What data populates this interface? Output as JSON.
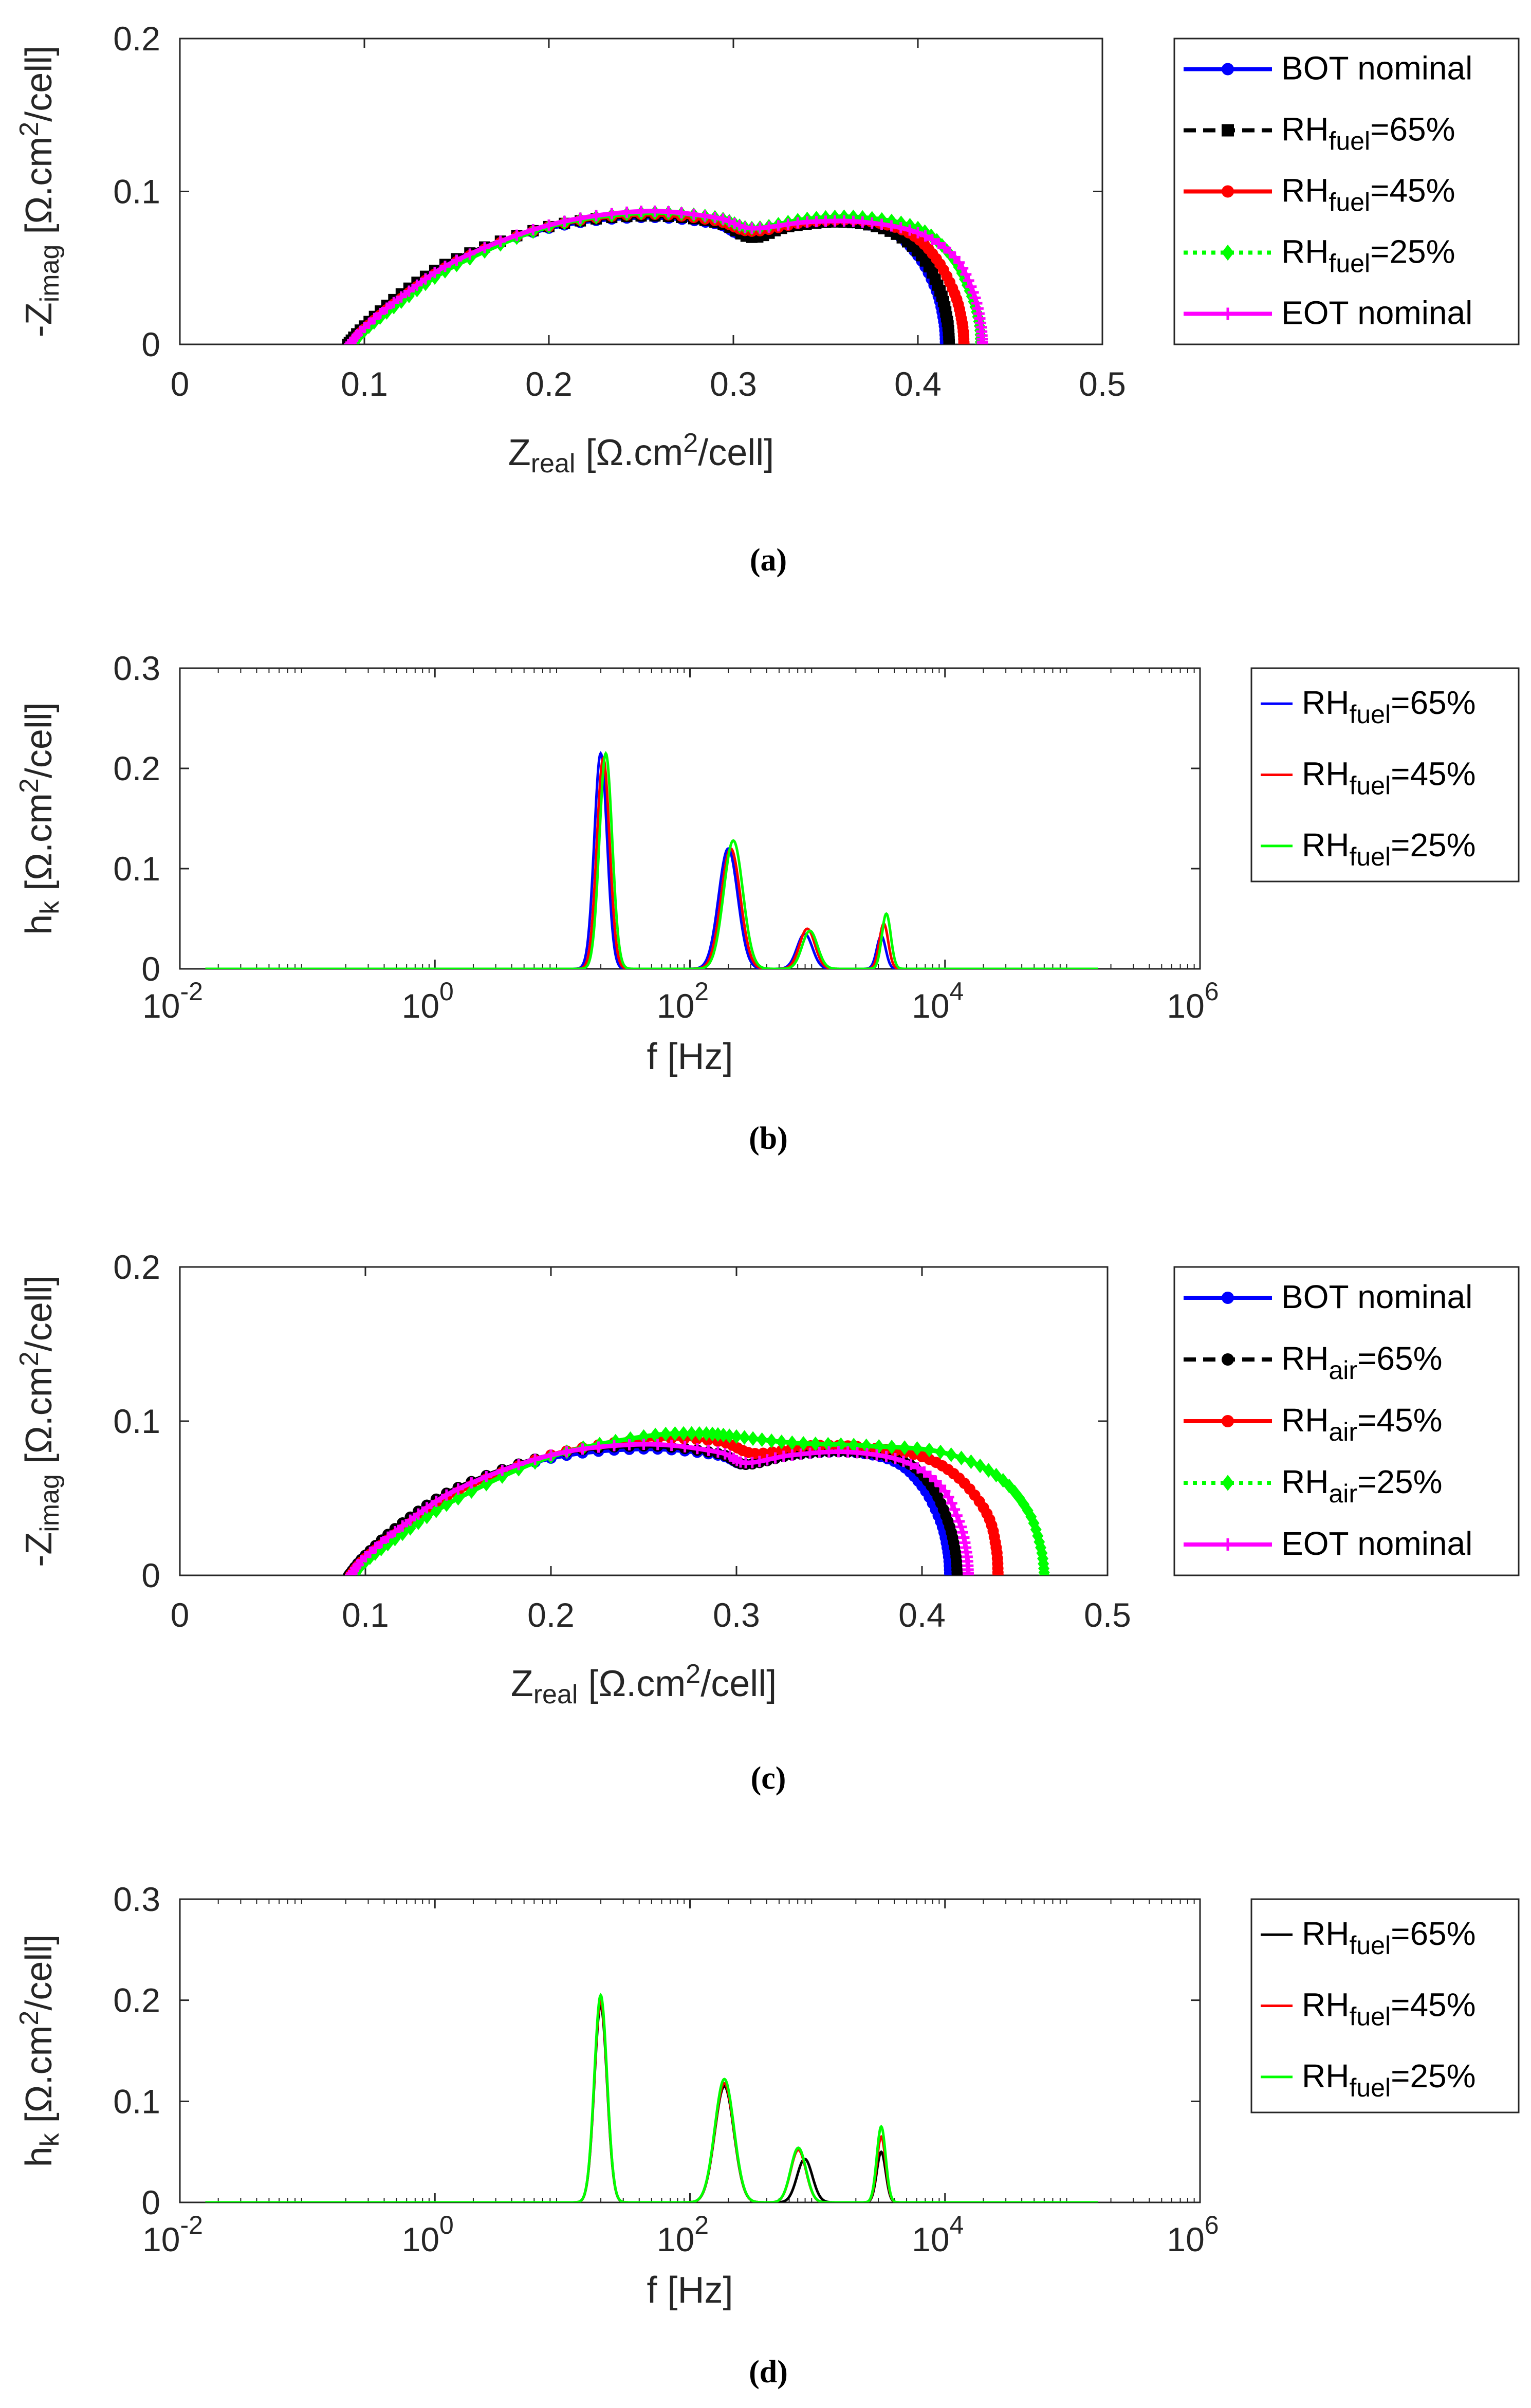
{
  "colors": {
    "blue": "#0000ff",
    "black": "#000000",
    "red": "#ff0000",
    "green": "#00ff00",
    "magenta": "#ff00ff"
  },
  "chart_data": [
    {
      "id": "a",
      "type": "line",
      "caption": "(a)",
      "xlabel": {
        "main": "Z",
        "sub": "real",
        "unit": "[Ω.cm",
        "sup": "2",
        "end": "/cell]"
      },
      "ylabel": {
        "main": "-Z",
        "sub": "imag",
        "unit": "[Ω.cm",
        "sup": "2",
        "end": "/cell]"
      },
      "xlim": [
        0,
        0.5
      ],
      "ylim": [
        0,
        0.2
      ],
      "xticks": [
        "0",
        "0.1",
        "0.2",
        "0.3",
        "0.4",
        "0.5"
      ],
      "yticks": [
        "0",
        "0.1",
        "0.2"
      ],
      "legend": [
        {
          "text": "BOT nominal",
          "color": "#0000ff",
          "dash": "solid",
          "marker": "dot"
        },
        {
          "text": "RH",
          "sub": "fuel",
          "tail": "=65%",
          "color": "#000000",
          "dash": "dashed",
          "marker": "square"
        },
        {
          "text": "RH",
          "sub": "fuel",
          "tail": "=45%",
          "color": "#ff0000",
          "dash": "solid",
          "marker": "dot"
        },
        {
          "text": "RH",
          "sub": "fuel",
          "tail": "=25%",
          "color": "#00ff00",
          "dash": "dotted",
          "marker": "diamond"
        },
        {
          "text": "EOT nominal",
          "color": "#ff00ff",
          "dash": "solid",
          "marker": "plus"
        }
      ],
      "series": [
        {
          "name": "BOT nominal",
          "color": "#0000ff",
          "marker": "dot",
          "x": [
            0.091,
            0.1,
            0.12,
            0.15,
            0.2,
            0.25,
            0.29,
            0.305,
            0.33,
            0.36,
            0.385,
            0.4,
            0.41,
            0.414,
            0.415
          ],
          "y": [
            0,
            0.012,
            0.032,
            0.055,
            0.076,
            0.083,
            0.079,
            0.072,
            0.078,
            0.08,
            0.074,
            0.058,
            0.035,
            0.015,
            0
          ]
        },
        {
          "name": "RH_fuel=65%",
          "color": "#000000",
          "marker": "square",
          "x": [
            0.091,
            0.1,
            0.12,
            0.15,
            0.2,
            0.25,
            0.29,
            0.31,
            0.33,
            0.36,
            0.385,
            0.402,
            0.412,
            0.416,
            0.417
          ],
          "y": [
            0,
            0.012,
            0.033,
            0.056,
            0.077,
            0.084,
            0.08,
            0.07,
            0.077,
            0.08,
            0.074,
            0.058,
            0.035,
            0.015,
            0
          ]
        },
        {
          "name": "RH_fuel=45%",
          "color": "#ff0000",
          "marker": "dot",
          "x": [
            0.093,
            0.1,
            0.12,
            0.15,
            0.2,
            0.25,
            0.29,
            0.31,
            0.34,
            0.37,
            0.395,
            0.41,
            0.42,
            0.424,
            0.425
          ],
          "y": [
            0,
            0.01,
            0.03,
            0.054,
            0.077,
            0.085,
            0.081,
            0.074,
            0.08,
            0.081,
            0.073,
            0.056,
            0.033,
            0.014,
            0
          ]
        },
        {
          "name": "RH_fuel=25%",
          "color": "#00ff00",
          "marker": "diamond",
          "x": [
            0.094,
            0.1,
            0.12,
            0.15,
            0.2,
            0.25,
            0.29,
            0.31,
            0.34,
            0.37,
            0.4,
            0.418,
            0.428,
            0.433,
            0.434
          ],
          "y": [
            0,
            0.009,
            0.028,
            0.052,
            0.077,
            0.086,
            0.083,
            0.076,
            0.082,
            0.083,
            0.076,
            0.058,
            0.035,
            0.015,
            0
          ]
        },
        {
          "name": "EOT nominal",
          "color": "#ff00ff",
          "marker": "plus",
          "x": [
            0.092,
            0.1,
            0.12,
            0.15,
            0.2,
            0.25,
            0.29,
            0.31,
            0.34,
            0.37,
            0.4,
            0.42,
            0.43,
            0.434,
            0.435
          ],
          "y": [
            0,
            0.011,
            0.031,
            0.055,
            0.078,
            0.087,
            0.083,
            0.076,
            0.08,
            0.08,
            0.073,
            0.057,
            0.034,
            0.014,
            0
          ]
        }
      ]
    },
    {
      "id": "b",
      "type": "line",
      "caption": "(b)",
      "xscale": "log",
      "xlabel": {
        "main": "f [Hz]"
      },
      "ylabel": {
        "main": "h",
        "sub": "k",
        "unit": "[Ω.cm",
        "sup": "2",
        "end": "/cell]"
      },
      "xlim": [
        -2,
        6
      ],
      "ylim": [
        0,
        0.3
      ],
      "xticks": [
        {
          "b": "10",
          "e": "-2"
        },
        {
          "b": "10",
          "e": "0"
        },
        {
          "b": "10",
          "e": "2"
        },
        {
          "b": "10",
          "e": "4"
        },
        {
          "b": "10",
          "e": "6"
        }
      ],
      "yticks": [
        "0",
        "0.1",
        "0.2",
        "0.3"
      ],
      "legend": [
        {
          "text": "RH",
          "sub": "fuel",
          "tail": "=65%",
          "color": "#0000ff"
        },
        {
          "text": "RH",
          "sub": "fuel",
          "tail": "=45%",
          "color": "#ff0000"
        },
        {
          "text": "RH",
          "sub": "fuel",
          "tail": "=25%",
          "color": "#00ff00"
        }
      ],
      "xrange_log": [
        -1.8,
        5.2
      ],
      "series": [
        {
          "name": "RH_fuel=65%",
          "color": "#0000ff",
          "peaks": [
            [
              1.3,
              0.215,
              0.05
            ],
            [
              2.3,
              0.12,
              0.075
            ],
            [
              2.9,
              0.035,
              0.06
            ],
            [
              3.5,
              0.033,
              0.035
            ]
          ]
        },
        {
          "name": "RH_fuel=45%",
          "color": "#ff0000",
          "peaks": [
            [
              1.32,
              0.21,
              0.05
            ],
            [
              2.32,
              0.12,
              0.075
            ],
            [
              2.92,
              0.04,
              0.06
            ],
            [
              3.52,
              0.045,
              0.035
            ]
          ]
        },
        {
          "name": "RH_fuel=25%",
          "color": "#00ff00",
          "peaks": [
            [
              1.34,
              0.215,
              0.05
            ],
            [
              2.34,
              0.128,
              0.075
            ],
            [
              2.94,
              0.038,
              0.06
            ],
            [
              3.54,
              0.055,
              0.035
            ]
          ]
        }
      ]
    },
    {
      "id": "c",
      "type": "line",
      "caption": "(c)",
      "xlabel": {
        "main": "Z",
        "sub": "real",
        "unit": "[Ω.cm",
        "sup": "2",
        "end": "/cell]"
      },
      "ylabel": {
        "main": "-Z",
        "sub": "imag",
        "unit": "[Ω.cm",
        "sup": "2",
        "end": "/cell]"
      },
      "xlim": [
        0,
        0.5
      ],
      "ylim": [
        0,
        0.2
      ],
      "xticks": [
        "0",
        "0.1",
        "0.2",
        "0.3",
        "0.4",
        "0.5"
      ],
      "yticks": [
        "0",
        "0.1",
        "0.2"
      ],
      "legend": [
        {
          "text": "BOT nominal",
          "color": "#0000ff",
          "dash": "solid",
          "marker": "dot"
        },
        {
          "text": "RH",
          "sub": "air",
          "tail": "=65%",
          "color": "#000000",
          "dash": "dashed",
          "marker": "dot"
        },
        {
          "text": "RH",
          "sub": "air",
          "tail": "=45%",
          "color": "#ff0000",
          "dash": "solid",
          "marker": "dot"
        },
        {
          "text": "RH",
          "sub": "air",
          "tail": "=25%",
          "color": "#00ff00",
          "dash": "dotted",
          "marker": "diamond"
        },
        {
          "text": "EOT nominal",
          "color": "#ff00ff",
          "dash": "solid",
          "marker": "plus"
        }
      ],
      "series": [
        {
          "name": "BOT nominal",
          "color": "#0000ff",
          "marker": "dot",
          "x": [
            0.091,
            0.1,
            0.12,
            0.15,
            0.2,
            0.25,
            0.29,
            0.305,
            0.33,
            0.36,
            0.385,
            0.4,
            0.41,
            0.414,
            0.415
          ],
          "y": [
            0,
            0.013,
            0.033,
            0.056,
            0.076,
            0.082,
            0.078,
            0.072,
            0.078,
            0.08,
            0.074,
            0.058,
            0.035,
            0.015,
            0
          ]
        },
        {
          "name": "RH_air=65%",
          "color": "#000000",
          "marker": "dot",
          "x": [
            0.091,
            0.1,
            0.12,
            0.15,
            0.2,
            0.25,
            0.29,
            0.305,
            0.33,
            0.36,
            0.39,
            0.405,
            0.414,
            0.418,
            0.419
          ],
          "y": [
            0,
            0.013,
            0.034,
            0.057,
            0.078,
            0.084,
            0.079,
            0.072,
            0.078,
            0.08,
            0.074,
            0.058,
            0.035,
            0.015,
            0
          ]
        },
        {
          "name": "RH_air=45%",
          "color": "#ff0000",
          "marker": "dot",
          "x": [
            0.092,
            0.1,
            0.12,
            0.15,
            0.2,
            0.25,
            0.29,
            0.31,
            0.34,
            0.37,
            0.4,
            0.42,
            0.435,
            0.44,
            0.441
          ],
          "y": [
            0,
            0.011,
            0.03,
            0.054,
            0.078,
            0.088,
            0.087,
            0.079,
            0.084,
            0.083,
            0.077,
            0.063,
            0.04,
            0.018,
            0
          ]
        },
        {
          "name": "RH_air=25%",
          "color": "#00ff00",
          "marker": "diamond",
          "x": [
            0.094,
            0.1,
            0.12,
            0.15,
            0.2,
            0.25,
            0.28,
            0.3,
            0.33,
            0.37,
            0.41,
            0.44,
            0.457,
            0.464,
            0.466
          ],
          "y": [
            0,
            0.009,
            0.027,
            0.05,
            0.077,
            0.09,
            0.092,
            0.09,
            0.086,
            0.084,
            0.08,
            0.065,
            0.042,
            0.018,
            0
          ]
        },
        {
          "name": "EOT nominal",
          "color": "#ff00ff",
          "marker": "plus",
          "x": [
            0.092,
            0.1,
            0.12,
            0.15,
            0.2,
            0.25,
            0.29,
            0.305,
            0.33,
            0.36,
            0.39,
            0.41,
            0.42,
            0.424,
            0.425
          ],
          "y": [
            0,
            0.012,
            0.032,
            0.056,
            0.078,
            0.085,
            0.08,
            0.073,
            0.078,
            0.08,
            0.074,
            0.058,
            0.035,
            0.015,
            0
          ]
        }
      ]
    },
    {
      "id": "d",
      "type": "line",
      "caption": "(d)",
      "xscale": "log",
      "xlabel": {
        "main": "f [Hz]"
      },
      "ylabel": {
        "main": "h",
        "sub": "k",
        "unit": "[Ω.cm",
        "sup": "2",
        "end": "/cell]"
      },
      "xlim": [
        -2,
        6
      ],
      "ylim": [
        0,
        0.3
      ],
      "xticks": [
        {
          "b": "10",
          "e": "-2"
        },
        {
          "b": "10",
          "e": "0"
        },
        {
          "b": "10",
          "e": "2"
        },
        {
          "b": "10",
          "e": "4"
        },
        {
          "b": "10",
          "e": "6"
        }
      ],
      "yticks": [
        "0",
        "0.1",
        "0.2",
        "0.3"
      ],
      "legend": [
        {
          "text": "RH",
          "sub": "fuel",
          "tail": "=65%",
          "color": "#000000"
        },
        {
          "text": "RH",
          "sub": "fuel",
          "tail": "=45%",
          "color": "#ff0000"
        },
        {
          "text": "RH",
          "sub": "fuel",
          "tail": "=25%",
          "color": "#00ff00"
        }
      ],
      "xrange_log": [
        -1.8,
        5.2
      ],
      "series": [
        {
          "name": "RH_fuel=65%",
          "color": "#000000",
          "peaks": [
            [
              1.3,
              0.195,
              0.05
            ],
            [
              2.27,
              0.115,
              0.075
            ],
            [
              2.9,
              0.043,
              0.06
            ],
            [
              3.5,
              0.05,
              0.035
            ]
          ]
        },
        {
          "name": "RH_fuel=45%",
          "color": "#ff0000",
          "peaks": [
            [
              1.3,
              0.2,
              0.05
            ],
            [
              2.27,
              0.118,
              0.075
            ],
            [
              2.85,
              0.052,
              0.06
            ],
            [
              3.5,
              0.065,
              0.035
            ]
          ]
        },
        {
          "name": "RH_fuel=25%",
          "color": "#00ff00",
          "peaks": [
            [
              1.3,
              0.205,
              0.05
            ],
            [
              2.27,
              0.122,
              0.075
            ],
            [
              2.85,
              0.054,
              0.06
            ],
            [
              3.5,
              0.075,
              0.035
            ]
          ]
        }
      ]
    }
  ]
}
